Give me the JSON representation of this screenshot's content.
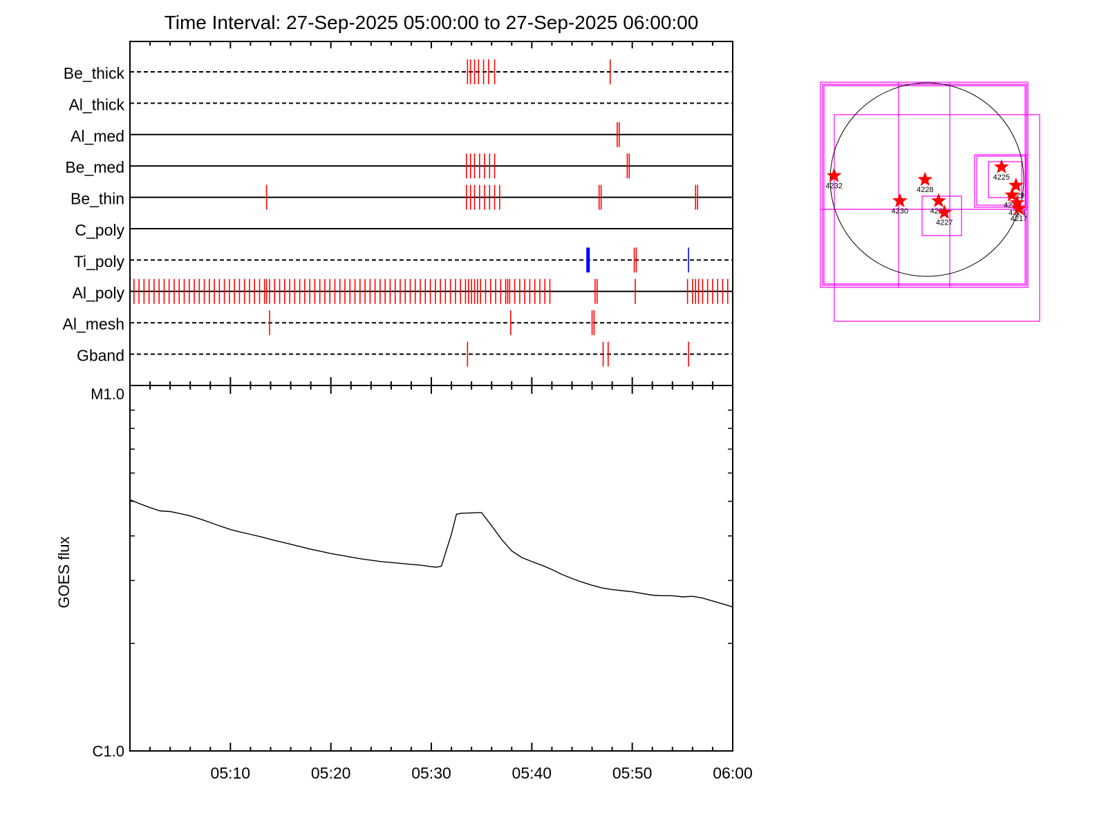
{
  "chart_data": {
    "type": "line",
    "title": "Time Interval: 27-Sep-2025 05:00:00 to 27-Sep-2025 06:00:00",
    "xlim": [
      "05:00",
      "06:00"
    ],
    "x_tick_labels": [
      "05:10",
      "05:20",
      "05:30",
      "05:40",
      "05:50",
      "06:00"
    ],
    "filter_panel": {
      "filters": [
        {
          "name": "Be_thick",
          "style": "dashed",
          "red_events": [
            33.6,
            33.9,
            34.3,
            34.7,
            35.2,
            35.7,
            36.3,
            47.8
          ]
        },
        {
          "name": "Al_thick",
          "style": "dashed",
          "red_events": []
        },
        {
          "name": "Al_med",
          "style": "solid",
          "red_events": [
            48.5,
            48.7
          ]
        },
        {
          "name": "Be_med",
          "style": "solid",
          "red_events": [
            33.5,
            33.9,
            34.3,
            34.8,
            35.3,
            35.8,
            36.3,
            49.5,
            49.7
          ]
        },
        {
          "name": "Be_thin",
          "style": "solid",
          "red_events": [
            13.6,
            33.5,
            33.9,
            34.3,
            34.8,
            35.3,
            35.8,
            36.3,
            36.8,
            46.7,
            46.9,
            56.3,
            56.5
          ]
        },
        {
          "name": "C_poly",
          "style": "solid",
          "red_events": []
        },
        {
          "name": "Ti_poly",
          "style": "dashed",
          "red_events": [
            50.2,
            50.4
          ],
          "blue_events": [
            {
              "t": 45.6,
              "strong": true
            },
            {
              "t": 55.6,
              "strong": false
            }
          ]
        },
        {
          "name": "Al_poly",
          "style": "solid",
          "red_events": [
            0.4,
            0.9,
            1.4,
            1.9,
            2.4,
            2.9,
            3.4,
            3.9,
            4.4,
            4.9,
            5.4,
            5.9,
            6.4,
            6.9,
            7.4,
            7.9,
            8.4,
            8.9,
            9.4,
            9.9,
            10.4,
            10.9,
            11.4,
            11.9,
            12.4,
            12.9,
            13.4,
            13.6,
            13.9,
            14.4,
            14.9,
            15.4,
            15.9,
            16.4,
            16.9,
            17.4,
            17.9,
            18.4,
            18.9,
            19.4,
            19.9,
            20.4,
            20.9,
            21.4,
            21.9,
            22.4,
            22.9,
            23.4,
            23.9,
            24.4,
            24.9,
            25.4,
            25.9,
            26.4,
            26.9,
            27.4,
            27.9,
            28.4,
            28.9,
            29.4,
            29.9,
            30.4,
            30.9,
            31.4,
            31.9,
            32.4,
            32.9,
            33.4,
            33.7,
            34.0,
            34.3,
            34.6,
            34.9,
            35.4,
            35.9,
            36.4,
            36.9,
            37.4,
            37.6,
            37.8,
            38.3,
            38.8,
            39.3,
            39.8,
            40.3,
            40.8,
            41.3,
            41.8,
            46.3,
            46.5,
            50.3,
            55.5,
            56.0,
            56.3,
            56.6,
            57.0,
            57.5,
            58.0,
            58.5,
            59.0,
            59.5
          ]
        },
        {
          "name": "Al_mesh",
          "style": "dashed",
          "red_events": [
            13.9,
            37.9,
            46.0,
            46.2
          ]
        },
        {
          "name": "Gband",
          "style": "dashed",
          "red_events": [
            33.6,
            47.1,
            47.6,
            55.6
          ]
        }
      ]
    },
    "goes_panel": {
      "ylabel": "GOES flux",
      "y_tick_labels": [
        "M1.0",
        "C1.0"
      ],
      "y_scale": "log",
      "ylim": [
        1e-06,
        1e-05
      ],
      "series": [
        {
          "x": [
            0,
            1,
            2,
            3,
            4,
            5,
            6,
            7,
            8,
            9,
            10,
            11,
            12,
            13,
            14,
            15,
            16,
            17,
            18,
            19,
            20,
            21,
            22,
            23,
            24,
            25,
            26,
            27,
            28,
            29,
            30,
            30.5,
            31,
            32,
            32.5,
            33,
            34,
            35,
            36,
            37,
            38,
            39,
            40,
            41,
            42,
            43,
            44,
            45,
            46,
            47,
            48,
            49,
            50,
            51,
            52,
            53,
            54,
            55,
            56,
            57,
            58,
            59,
            60
          ],
          "y": [
            5.05e-06,
            4.92e-06,
            4.8e-06,
            4.7e-06,
            4.68e-06,
            4.62e-06,
            4.55e-06,
            4.46e-06,
            4.36e-06,
            4.26e-06,
            4.17e-06,
            4.1e-06,
            4.04e-06,
            3.98e-06,
            3.91e-06,
            3.85e-06,
            3.79e-06,
            3.73e-06,
            3.67e-06,
            3.62e-06,
            3.57e-06,
            3.53e-06,
            3.49e-06,
            3.45e-06,
            3.42e-06,
            3.39e-06,
            3.37e-06,
            3.35e-06,
            3.33e-06,
            3.31e-06,
            3.28e-06,
            3.27e-06,
            3.29e-06,
            4.05e-06,
            4.6e-06,
            4.63e-06,
            4.64e-06,
            4.65e-06,
            4.27e-06,
            3.91e-06,
            3.63e-06,
            3.48e-06,
            3.39e-06,
            3.31e-06,
            3.22e-06,
            3.12e-06,
            3.04e-06,
            2.97e-06,
            2.91e-06,
            2.86e-06,
            2.83e-06,
            2.81e-06,
            2.79e-06,
            2.76e-06,
            2.73e-06,
            2.72e-06,
            2.72e-06,
            2.7e-06,
            2.71e-06,
            2.68e-06,
            2.63e-06,
            2.58e-06,
            2.53e-06
          ]
        }
      ]
    },
    "sun_map": {
      "circle_color": "#000000",
      "box_color": "#ff00ff",
      "star_color": "#ff0000",
      "regions": [
        {
          "label": "4232",
          "x": -0.96,
          "y": 0.04
        },
        {
          "label": "4228",
          "x": -0.02,
          "y": 0.0
        },
        {
          "label": "4230",
          "x": -0.28,
          "y": -0.22
        },
        {
          "label": "4226",
          "x": 0.12,
          "y": -0.22
        },
        {
          "label": "4227",
          "x": 0.18,
          "y": -0.34
        },
        {
          "label": "4225",
          "x": 0.77,
          "y": 0.13
        },
        {
          "label": "4229",
          "x": 0.92,
          "y": -0.06
        },
        {
          "label": "4231",
          "x": 0.88,
          "y": -0.16
        },
        {
          "label": "4224",
          "x": 0.93,
          "y": -0.24
        },
        {
          "label": "4217",
          "x": 0.95,
          "y": -0.3
        }
      ]
    },
    "colors": {
      "event_red": "#ff0000",
      "event_blue": "#0000ff",
      "axis": "#000000",
      "magenta": "#ff00ff"
    }
  }
}
